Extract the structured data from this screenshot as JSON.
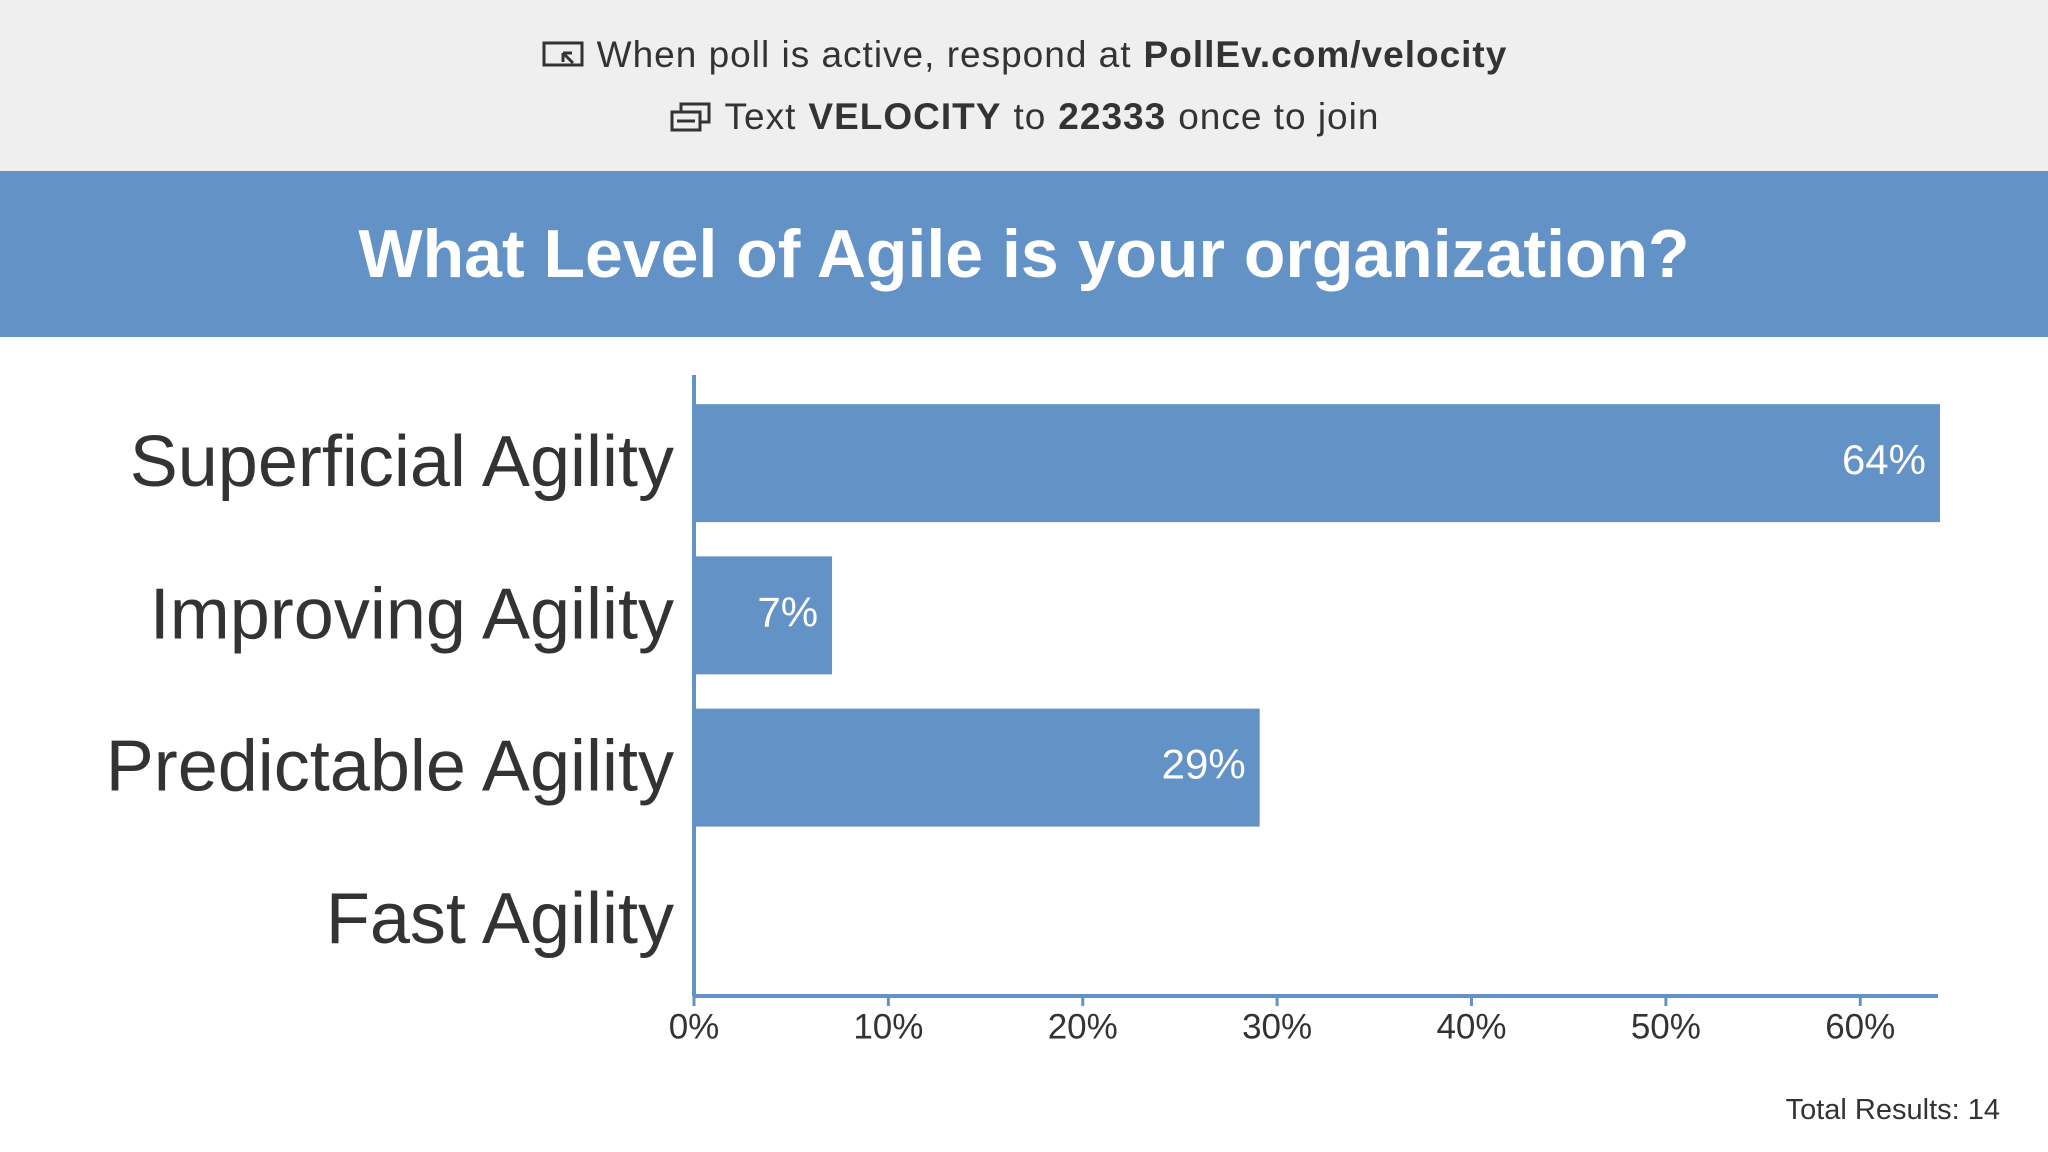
{
  "header": {
    "line1": [
      "When poll is active, respond at",
      "PollEv.com/velocity"
    ],
    "line2": [
      "Text",
      "VELOCITY",
      "to",
      "22333",
      "once to join"
    ]
  },
  "chart_data": {
    "type": "bar",
    "orientation": "horizontal",
    "title": "What Level of Agile is your organization?",
    "categories": [
      "Superficial Agility",
      "Improving Agility",
      "Predictable Agility",
      "Fast Agility"
    ],
    "values": [
      64,
      7,
      29,
      0
    ],
    "value_labels": [
      "64%",
      "7%",
      "29%",
      null
    ],
    "color": "#6393c6",
    "xlim": [
      0,
      64
    ],
    "xticks": [
      {
        "value": 0,
        "label": "0%"
      },
      {
        "value": 10,
        "label": "10%"
      },
      {
        "value": 20,
        "label": "20%"
      },
      {
        "value": 30,
        "label": "30%"
      },
      {
        "value": 40,
        "label": "40%"
      },
      {
        "value": 50,
        "label": "50%"
      },
      {
        "value": 60,
        "label": "60%"
      }
    ],
    "grid": false
  },
  "total_results": "Total Results: 14"
}
